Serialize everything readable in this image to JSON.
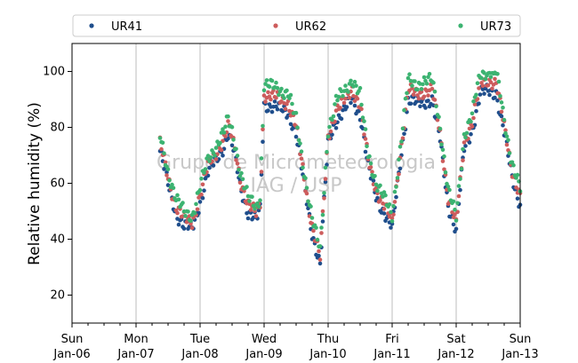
{
  "chart_data": {
    "type": "scatter",
    "title": "",
    "xlabel": "",
    "ylabel": "Relative humidity (%)",
    "ylim": [
      10,
      110
    ],
    "xlim": [
      "2019-01-06",
      "2019-01-13"
    ],
    "yticks": [
      20,
      40,
      60,
      80,
      100
    ],
    "xticks": [
      {
        "day": "Sun",
        "date": "Jan-06"
      },
      {
        "day": "Mon",
        "date": "Jan-07"
      },
      {
        "day": "Tue",
        "date": "Jan-08"
      },
      {
        "day": "Wed",
        "date": "Jan-09"
      },
      {
        "day": "Thu",
        "date": "Jan-10"
      },
      {
        "day": "Fri",
        "date": "Jan-11"
      },
      {
        "day": "Sat",
        "date": "Jan-12"
      },
      {
        "day": "Sun",
        "date": "Jan-13"
      }
    ],
    "grid": "vertical",
    "legend": "top",
    "watermark": [
      "Grupo de Micrometeorologia",
      "IAG / USP"
    ],
    "series": [
      {
        "name": "UR41",
        "color": "#1f4e8c",
        "offset": -2.5
      },
      {
        "name": "UR62",
        "color": "#cd5c5c",
        "offset": 0
      },
      {
        "name": "UR73",
        "color": "#3cb371",
        "offset": 2.5
      }
    ],
    "x": [
      "2019-01-07 09:00",
      "2019-01-07 12:00",
      "2019-01-07 15:00",
      "2019-01-07 18:00",
      "2019-01-07 21:00",
      "2019-01-08 00:00",
      "2019-01-08 03:00",
      "2019-01-08 06:00",
      "2019-01-08 09:00",
      "2019-01-08 10:30",
      "2019-01-08 12:00",
      "2019-01-08 13:30",
      "2019-01-08 15:00",
      "2019-01-08 18:00",
      "2019-01-08 21:00",
      "2019-01-08 22:30",
      "2019-01-09 00:00",
      "2019-01-09 03:00",
      "2019-01-09 06:00",
      "2019-01-09 09:00",
      "2019-01-09 12:00",
      "2019-01-09 15:00",
      "2019-01-09 18:00",
      "2019-01-09 21:00",
      "2019-01-10 00:00",
      "2019-01-10 03:00",
      "2019-01-10 06:00",
      "2019-01-10 09:00",
      "2019-01-10 12:00",
      "2019-01-10 15:00",
      "2019-01-10 18:00",
      "2019-01-10 21:00",
      "2019-01-11 00:00",
      "2019-01-11 03:00",
      "2019-01-11 06:00",
      "2019-01-11 09:00",
      "2019-01-11 12:00",
      "2019-01-11 15:00",
      "2019-01-11 18:00",
      "2019-01-11 21:00",
      "2019-01-12 00:00",
      "2019-01-12 03:00",
      "2019-01-12 06:00",
      "2019-01-12 09:00",
      "2019-01-12 12:00",
      "2019-01-12 15:00",
      "2019-01-12 18:00",
      "2019-01-12 21:00",
      "2019-01-13 00:00"
    ],
    "values": [
      74,
      62,
      52,
      47,
      46,
      56,
      66,
      71,
      76,
      80,
      76,
      70,
      62,
      52,
      49,
      53,
      92,
      91,
      90,
      89,
      80,
      62,
      45,
      33,
      77,
      86,
      89,
      94,
      88,
      68,
      58,
      52,
      46,
      70,
      93,
      92,
      93,
      93,
      78,
      55,
      45,
      75,
      82,
      95,
      97,
      96,
      80,
      65,
      55
    ]
  }
}
